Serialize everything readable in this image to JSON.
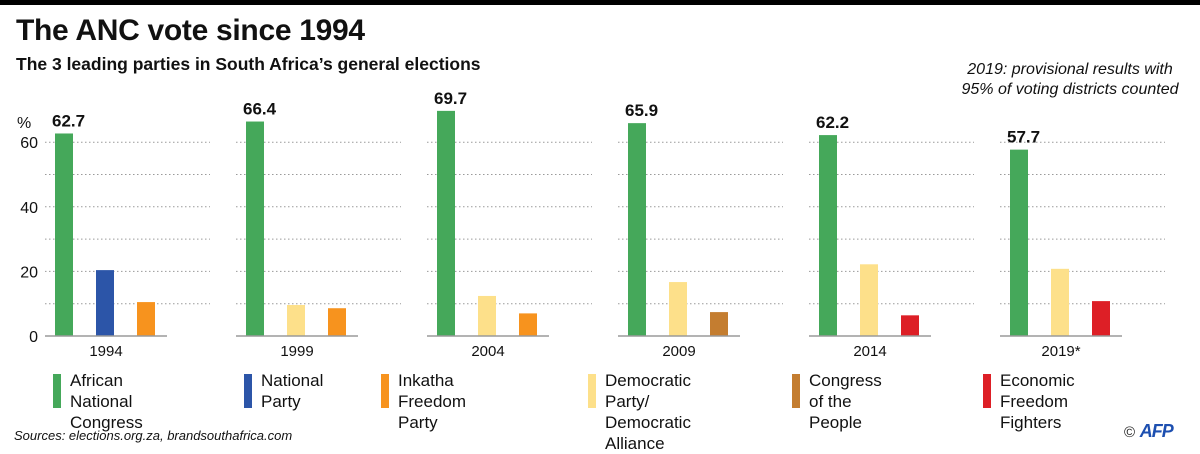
{
  "header": {
    "title": "The ANC vote since 1994",
    "subtitle": "The 3 leading parties in South Africa’s general elections",
    "note": "2019: provisional results with 95% of voting districts counted"
  },
  "legend": [
    {
      "name": "African National\nCongress",
      "color": "#45a85a"
    },
    {
      "name": "National\nParty",
      "color": "#2c55a8"
    },
    {
      "name": "Inkatha Freedom\nParty",
      "color": "#f7931e"
    },
    {
      "name": "Democratic Party/\nDemocratic Alliance",
      "color": "#fde08a"
    },
    {
      "name": "Congress\nof the People",
      "color": "#c47d30"
    },
    {
      "name": "Economic Freedom\nFighters",
      "color": "#dd1f26"
    }
  ],
  "footer": {
    "source": "Sources: elections.org.za, brandsouthafrica.com",
    "copyright": "©",
    "agency": "AFP"
  },
  "chart_data": {
    "type": "bar",
    "title": "The ANC vote since 1994",
    "subtitle": "The 3 leading parties in South Africa’s general elections",
    "ylabel": "%",
    "ylim": [
      0,
      70
    ],
    "yticks": [
      0,
      20,
      40,
      60
    ],
    "grid": true,
    "legend_position": "bottom",
    "panels": [
      {
        "year": "1994",
        "bars": [
          {
            "party": "African National Congress",
            "value": 62.7,
            "color": "#45a85a",
            "label": "62.7"
          },
          {
            "party": "National Party",
            "value": 20.4,
            "color": "#2c55a8"
          },
          {
            "party": "Inkatha Freedom Party",
            "value": 10.5,
            "color": "#f7931e"
          }
        ]
      },
      {
        "year": "1999",
        "bars": [
          {
            "party": "African National Congress",
            "value": 66.4,
            "color": "#45a85a",
            "label": "66.4"
          },
          {
            "party": "Democratic Party/Democratic Alliance",
            "value": 9.6,
            "color": "#fde08a"
          },
          {
            "party": "Inkatha Freedom Party",
            "value": 8.6,
            "color": "#f7931e"
          }
        ]
      },
      {
        "year": "2004",
        "bars": [
          {
            "party": "African National Congress",
            "value": 69.7,
            "color": "#45a85a",
            "label": "69.7"
          },
          {
            "party": "Democratic Party/Democratic Alliance",
            "value": 12.4,
            "color": "#fde08a"
          },
          {
            "party": "Inkatha Freedom Party",
            "value": 7.0,
            "color": "#f7931e"
          }
        ]
      },
      {
        "year": "2009",
        "bars": [
          {
            "party": "African National Congress",
            "value": 65.9,
            "color": "#45a85a",
            "label": "65.9"
          },
          {
            "party": "Democratic Party/Democratic Alliance",
            "value": 16.7,
            "color": "#fde08a"
          },
          {
            "party": "Congress of the People",
            "value": 7.4,
            "color": "#c47d30"
          }
        ]
      },
      {
        "year": "2014",
        "bars": [
          {
            "party": "African National Congress",
            "value": 62.2,
            "color": "#45a85a",
            "label": "62.2"
          },
          {
            "party": "Democratic Party/Democratic Alliance",
            "value": 22.2,
            "color": "#fde08a"
          },
          {
            "party": "Economic Freedom Fighters",
            "value": 6.4,
            "color": "#dd1f26"
          }
        ]
      },
      {
        "year": "2019*",
        "bars": [
          {
            "party": "African National Congress",
            "value": 57.7,
            "color": "#45a85a",
            "label": "57.7"
          },
          {
            "party": "Democratic Party/Democratic Alliance",
            "value": 20.8,
            "color": "#fde08a"
          },
          {
            "party": "Economic Freedom Fighters",
            "value": 10.8,
            "color": "#dd1f26"
          }
        ]
      }
    ]
  }
}
